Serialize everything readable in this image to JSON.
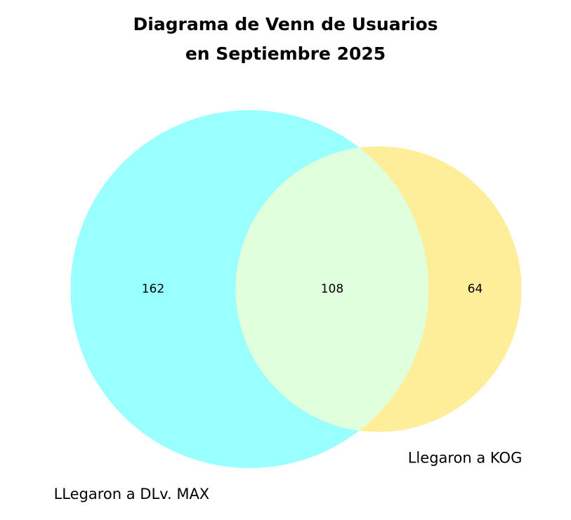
{
  "chart_data": {
    "type": "venn",
    "title": "Diagrama de Venn de Usuarios\nen Septiembre 2025",
    "sets": [
      {
        "name": "LLegaron a DLv. MAX",
        "color": "#99ffff"
      },
      {
        "name": "Llegaron a KOG",
        "color": "#ffee99"
      }
    ],
    "subsets": [
      162,
      64,
      108
    ],
    "overlap_color": "#e0ffdd"
  }
}
